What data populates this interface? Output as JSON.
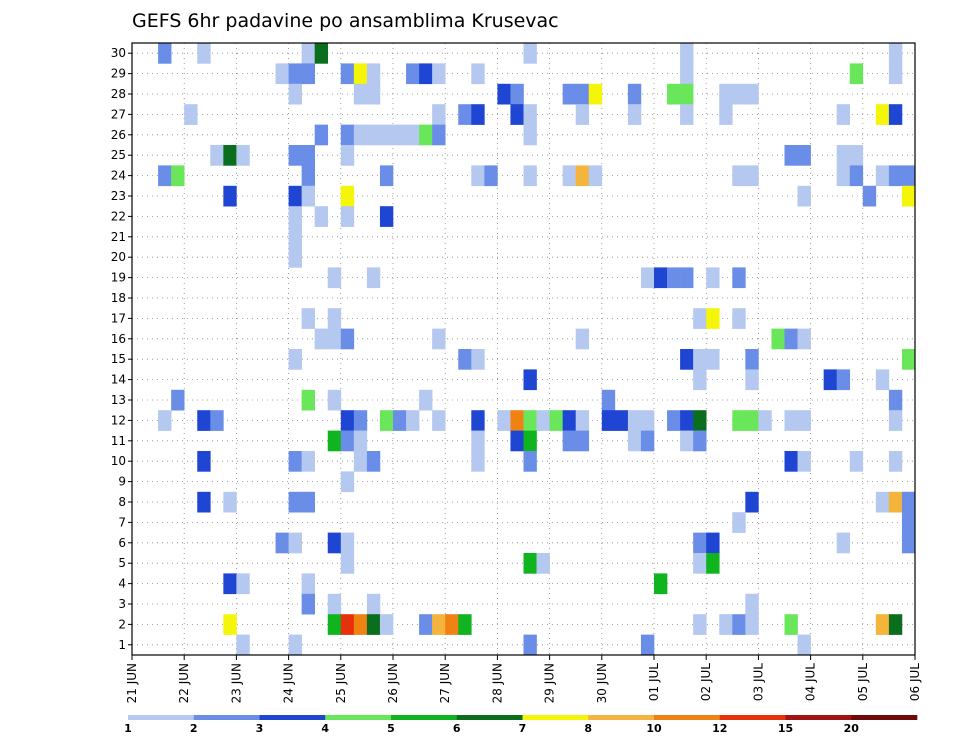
{
  "chart_data": {
    "type": "heatmap",
    "title": "GEFS 6hr padavine po ansamblima Krusevac",
    "x_ticks": [
      "21 JUN",
      "22 JUN",
      "23 JUN",
      "24 JUN",
      "25 JUN",
      "26 JUN",
      "27 JUN",
      "28 JUN",
      "29 JUN",
      "30 JUN",
      "01 JUL",
      "02 JUL",
      "03 JUL",
      "04 JUL",
      "05 JUL",
      "06 JUL"
    ],
    "y_ticks": [
      "1",
      "2",
      "3",
      "4",
      "5",
      "6",
      "7",
      "8",
      "9",
      "10",
      "11",
      "12",
      "13",
      "14",
      "15",
      "16",
      "17",
      "18",
      "19",
      "20",
      "21",
      "22",
      "23",
      "24",
      "25",
      "26",
      "27",
      "28",
      "29",
      "30"
    ],
    "time_steps_per_day": 4,
    "n_steps": 60,
    "grid": true,
    "colorbar": {
      "labels": [
        "1",
        "2",
        "3",
        "4",
        "5",
        "6",
        "7",
        "8",
        "10",
        "12",
        "15",
        "20"
      ],
      "colors": [
        "#b4c8f0",
        "#6a8ee8",
        "#1e46d2",
        "#6ae65a",
        "#10b41e",
        "#0a6e1e",
        "#f5f50a",
        "#f5b43c",
        "#f08214",
        "#e6320a",
        "#a01414",
        "#6e0a0a"
      ]
    },
    "cells": [
      {
        "m": 30,
        "t": 2,
        "c": 1
      },
      {
        "m": 30,
        "t": 5,
        "c": 0
      },
      {
        "m": 30,
        "t": 13,
        "c": 0
      },
      {
        "m": 30,
        "t": 14,
        "c": 5
      },
      {
        "m": 30,
        "t": 30,
        "c": 0
      },
      {
        "m": 30,
        "t": 42,
        "c": 0
      },
      {
        "m": 30,
        "t": 58,
        "c": 0
      },
      {
        "m": 29,
        "t": 11,
        "c": 0
      },
      {
        "m": 29,
        "t": 12,
        "c": 1
      },
      {
        "m": 29,
        "t": 13,
        "c": 1
      },
      {
        "m": 29,
        "t": 16,
        "c": 1
      },
      {
        "m": 29,
        "t": 17,
        "c": 6
      },
      {
        "m": 29,
        "t": 18,
        "c": 0
      },
      {
        "m": 29,
        "t": 21,
        "c": 1
      },
      {
        "m": 29,
        "t": 22,
        "c": 2
      },
      {
        "m": 29,
        "t": 23,
        "c": 0
      },
      {
        "m": 29,
        "t": 26,
        "c": 0
      },
      {
        "m": 29,
        "t": 42,
        "c": 0
      },
      {
        "m": 29,
        "t": 55,
        "c": 3
      },
      {
        "m": 29,
        "t": 58,
        "c": 0
      },
      {
        "m": 28,
        "t": 12,
        "c": 0
      },
      {
        "m": 28,
        "t": 17,
        "c": 0
      },
      {
        "m": 28,
        "t": 18,
        "c": 0
      },
      {
        "m": 28,
        "t": 28,
        "c": 2
      },
      {
        "m": 28,
        "t": 29,
        "c": 1
      },
      {
        "m": 28,
        "t": 33,
        "c": 1
      },
      {
        "m": 28,
        "t": 34,
        "c": 1
      },
      {
        "m": 28,
        "t": 35,
        "c": 6
      },
      {
        "m": 28,
        "t": 38,
        "c": 1
      },
      {
        "m": 28,
        "t": 41,
        "c": 3
      },
      {
        "m": 28,
        "t": 42,
        "c": 3
      },
      {
        "m": 28,
        "t": 45,
        "c": 0
      },
      {
        "m": 28,
        "t": 46,
        "c": 0
      },
      {
        "m": 28,
        "t": 47,
        "c": 0
      },
      {
        "m": 27,
        "t": 4,
        "c": 0
      },
      {
        "m": 27,
        "t": 23,
        "c": 0
      },
      {
        "m": 27,
        "t": 25,
        "c": 1
      },
      {
        "m": 27,
        "t": 26,
        "c": 2
      },
      {
        "m": 27,
        "t": 29,
        "c": 2
      },
      {
        "m": 27,
        "t": 30,
        "c": 0
      },
      {
        "m": 27,
        "t": 34,
        "c": 0
      },
      {
        "m": 27,
        "t": 38,
        "c": 0
      },
      {
        "m": 27,
        "t": 42,
        "c": 0
      },
      {
        "m": 27,
        "t": 45,
        "c": 0
      },
      {
        "m": 27,
        "t": 54,
        "c": 0
      },
      {
        "m": 27,
        "t": 57,
        "c": 6
      },
      {
        "m": 27,
        "t": 58,
        "c": 2
      },
      {
        "m": 26,
        "t": 14,
        "c": 1
      },
      {
        "m": 26,
        "t": 16,
        "c": 1
      },
      {
        "m": 26,
        "t": 17,
        "c": 0
      },
      {
        "m": 26,
        "t": 18,
        "c": 0
      },
      {
        "m": 26,
        "t": 19,
        "c": 0
      },
      {
        "m": 26,
        "t": 20,
        "c": 0
      },
      {
        "m": 26,
        "t": 21,
        "c": 0
      },
      {
        "m": 26,
        "t": 22,
        "c": 3
      },
      {
        "m": 26,
        "t": 23,
        "c": 1
      },
      {
        "m": 26,
        "t": 30,
        "c": 0
      },
      {
        "m": 25,
        "t": 6,
        "c": 0
      },
      {
        "m": 25,
        "t": 7,
        "c": 5
      },
      {
        "m": 25,
        "t": 8,
        "c": 0
      },
      {
        "m": 25,
        "t": 12,
        "c": 1
      },
      {
        "m": 25,
        "t": 13,
        "c": 1
      },
      {
        "m": 25,
        "t": 16,
        "c": 0
      },
      {
        "m": 25,
        "t": 50,
        "c": 1
      },
      {
        "m": 25,
        "t": 51,
        "c": 1
      },
      {
        "m": 25,
        "t": 54,
        "c": 0
      },
      {
        "m": 25,
        "t": 55,
        "c": 0
      },
      {
        "m": 24,
        "t": 2,
        "c": 1
      },
      {
        "m": 24,
        "t": 3,
        "c": 3
      },
      {
        "m": 24,
        "t": 13,
        "c": 1
      },
      {
        "m": 24,
        "t": 19,
        "c": 1
      },
      {
        "m": 24,
        "t": 26,
        "c": 0
      },
      {
        "m": 24,
        "t": 27,
        "c": 1
      },
      {
        "m": 24,
        "t": 30,
        "c": 0
      },
      {
        "m": 24,
        "t": 33,
        "c": 0
      },
      {
        "m": 24,
        "t": 34,
        "c": 7
      },
      {
        "m": 24,
        "t": 35,
        "c": 0
      },
      {
        "m": 24,
        "t": 46,
        "c": 0
      },
      {
        "m": 24,
        "t": 47,
        "c": 0
      },
      {
        "m": 24,
        "t": 54,
        "c": 0
      },
      {
        "m": 24,
        "t": 55,
        "c": 1
      },
      {
        "m": 24,
        "t": 57,
        "c": 0
      },
      {
        "m": 24,
        "t": 58,
        "c": 1
      },
      {
        "m": 24,
        "t": 59,
        "c": 1
      },
      {
        "m": 23,
        "t": 7,
        "c": 2
      },
      {
        "m": 23,
        "t": 12,
        "c": 2
      },
      {
        "m": 23,
        "t": 13,
        "c": 0
      },
      {
        "m": 23,
        "t": 16,
        "c": 6
      },
      {
        "m": 23,
        "t": 51,
        "c": 0
      },
      {
        "m": 23,
        "t": 56,
        "c": 1
      },
      {
        "m": 23,
        "t": 59,
        "c": 6
      },
      {
        "m": 22,
        "t": 12,
        "c": 0
      },
      {
        "m": 22,
        "t": 14,
        "c": 0
      },
      {
        "m": 22,
        "t": 16,
        "c": 0
      },
      {
        "m": 22,
        "t": 19,
        "c": 2
      },
      {
        "m": 21,
        "t": 12,
        "c": 0
      },
      {
        "m": 20,
        "t": 12,
        "c": 0
      },
      {
        "m": 19,
        "t": 15,
        "c": 0
      },
      {
        "m": 19,
        "t": 18,
        "c": 0
      },
      {
        "m": 19,
        "t": 39,
        "c": 0
      },
      {
        "m": 19,
        "t": 40,
        "c": 2
      },
      {
        "m": 19,
        "t": 41,
        "c": 1
      },
      {
        "m": 19,
        "t": 42,
        "c": 1
      },
      {
        "m": 19,
        "t": 44,
        "c": 0
      },
      {
        "m": 19,
        "t": 46,
        "c": 1
      },
      {
        "m": 17,
        "t": 13,
        "c": 0
      },
      {
        "m": 17,
        "t": 15,
        "c": 0
      },
      {
        "m": 17,
        "t": 43,
        "c": 0
      },
      {
        "m": 17,
        "t": 44,
        "c": 6
      },
      {
        "m": 17,
        "t": 46,
        "c": 0
      },
      {
        "m": 16,
        "t": 14,
        "c": 0
      },
      {
        "m": 16,
        "t": 15,
        "c": 0
      },
      {
        "m": 16,
        "t": 16,
        "c": 1
      },
      {
        "m": 16,
        "t": 23,
        "c": 0
      },
      {
        "m": 16,
        "t": 34,
        "c": 0
      },
      {
        "m": 16,
        "t": 49,
        "c": 3
      },
      {
        "m": 16,
        "t": 50,
        "c": 1
      },
      {
        "m": 16,
        "t": 51,
        "c": 0
      },
      {
        "m": 15,
        "t": 12,
        "c": 0
      },
      {
        "m": 15,
        "t": 25,
        "c": 1
      },
      {
        "m": 15,
        "t": 26,
        "c": 0
      },
      {
        "m": 15,
        "t": 42,
        "c": 2
      },
      {
        "m": 15,
        "t": 43,
        "c": 0
      },
      {
        "m": 15,
        "t": 44,
        "c": 0
      },
      {
        "m": 15,
        "t": 47,
        "c": 1
      },
      {
        "m": 15,
        "t": 59,
        "c": 3
      },
      {
        "m": 14,
        "t": 30,
        "c": 2
      },
      {
        "m": 14,
        "t": 43,
        "c": 0
      },
      {
        "m": 14,
        "t": 47,
        "c": 0
      },
      {
        "m": 14,
        "t": 53,
        "c": 2
      },
      {
        "m": 14,
        "t": 54,
        "c": 1
      },
      {
        "m": 14,
        "t": 57,
        "c": 0
      },
      {
        "m": 13,
        "t": 3,
        "c": 1
      },
      {
        "m": 13,
        "t": 13,
        "c": 3
      },
      {
        "m": 13,
        "t": 15,
        "c": 0
      },
      {
        "m": 13,
        "t": 22,
        "c": 0
      },
      {
        "m": 13,
        "t": 36,
        "c": 1
      },
      {
        "m": 13,
        "t": 58,
        "c": 1
      },
      {
        "m": 12,
        "t": 2,
        "c": 0
      },
      {
        "m": 12,
        "t": 5,
        "c": 2
      },
      {
        "m": 12,
        "t": 6,
        "c": 1
      },
      {
        "m": 12,
        "t": 16,
        "c": 2
      },
      {
        "m": 12,
        "t": 17,
        "c": 1
      },
      {
        "m": 12,
        "t": 19,
        "c": 3
      },
      {
        "m": 12,
        "t": 20,
        "c": 1
      },
      {
        "m": 12,
        "t": 21,
        "c": 0
      },
      {
        "m": 12,
        "t": 23,
        "c": 0
      },
      {
        "m": 12,
        "t": 26,
        "c": 2
      },
      {
        "m": 12,
        "t": 28,
        "c": 0
      },
      {
        "m": 12,
        "t": 29,
        "c": 8
      },
      {
        "m": 12,
        "t": 30,
        "c": 3
      },
      {
        "m": 12,
        "t": 31,
        "c": 0
      },
      {
        "m": 12,
        "t": 32,
        "c": 3
      },
      {
        "m": 12,
        "t": 33,
        "c": 2
      },
      {
        "m": 12,
        "t": 34,
        "c": 0
      },
      {
        "m": 12,
        "t": 36,
        "c": 2
      },
      {
        "m": 12,
        "t": 37,
        "c": 2
      },
      {
        "m": 12,
        "t": 38,
        "c": 0
      },
      {
        "m": 12,
        "t": 39,
        "c": 0
      },
      {
        "m": 12,
        "t": 41,
        "c": 1
      },
      {
        "m": 12,
        "t": 42,
        "c": 2
      },
      {
        "m": 12,
        "t": 43,
        "c": 5
      },
      {
        "m": 12,
        "t": 46,
        "c": 3
      },
      {
        "m": 12,
        "t": 47,
        "c": 3
      },
      {
        "m": 12,
        "t": 48,
        "c": 0
      },
      {
        "m": 12,
        "t": 50,
        "c": 0
      },
      {
        "m": 12,
        "t": 51,
        "c": 0
      },
      {
        "m": 12,
        "t": 58,
        "c": 0
      },
      {
        "m": 11,
        "t": 15,
        "c": 4
      },
      {
        "m": 11,
        "t": 16,
        "c": 1
      },
      {
        "m": 11,
        "t": 17,
        "c": 0
      },
      {
        "m": 11,
        "t": 26,
        "c": 0
      },
      {
        "m": 11,
        "t": 29,
        "c": 2
      },
      {
        "m": 11,
        "t": 30,
        "c": 4
      },
      {
        "m": 11,
        "t": 33,
        "c": 1
      },
      {
        "m": 11,
        "t": 34,
        "c": 1
      },
      {
        "m": 11,
        "t": 38,
        "c": 0
      },
      {
        "m": 11,
        "t": 39,
        "c": 1
      },
      {
        "m": 11,
        "t": 42,
        "c": 0
      },
      {
        "m": 11,
        "t": 43,
        "c": 1
      },
      {
        "m": 10,
        "t": 5,
        "c": 2
      },
      {
        "m": 10,
        "t": 12,
        "c": 1
      },
      {
        "m": 10,
        "t": 13,
        "c": 0
      },
      {
        "m": 10,
        "t": 17,
        "c": 0
      },
      {
        "m": 10,
        "t": 18,
        "c": 1
      },
      {
        "m": 10,
        "t": 26,
        "c": 0
      },
      {
        "m": 10,
        "t": 30,
        "c": 1
      },
      {
        "m": 10,
        "t": 50,
        "c": 2
      },
      {
        "m": 10,
        "t": 51,
        "c": 0
      },
      {
        "m": 10,
        "t": 55,
        "c": 0
      },
      {
        "m": 10,
        "t": 58,
        "c": 0
      },
      {
        "m": 9,
        "t": 16,
        "c": 0
      },
      {
        "m": 8,
        "t": 5,
        "c": 2
      },
      {
        "m": 8,
        "t": 7,
        "c": 0
      },
      {
        "m": 8,
        "t": 12,
        "c": 1
      },
      {
        "m": 8,
        "t": 13,
        "c": 1
      },
      {
        "m": 8,
        "t": 47,
        "c": 2
      },
      {
        "m": 8,
        "t": 57,
        "c": 0
      },
      {
        "m": 8,
        "t": 58,
        "c": 7
      },
      {
        "m": 8,
        "t": 59,
        "c": 1
      },
      {
        "m": 7,
        "t": 46,
        "c": 0
      },
      {
        "m": 7,
        "t": 59,
        "c": 1
      },
      {
        "m": 6,
        "t": 11,
        "c": 1
      },
      {
        "m": 6,
        "t": 12,
        "c": 0
      },
      {
        "m": 6,
        "t": 15,
        "c": 2
      },
      {
        "m": 6,
        "t": 16,
        "c": 0
      },
      {
        "m": 6,
        "t": 43,
        "c": 1
      },
      {
        "m": 6,
        "t": 44,
        "c": 2
      },
      {
        "m": 6,
        "t": 54,
        "c": 0
      },
      {
        "m": 6,
        "t": 59,
        "c": 1
      },
      {
        "m": 5,
        "t": 16,
        "c": 0
      },
      {
        "m": 5,
        "t": 30,
        "c": 4
      },
      {
        "m": 5,
        "t": 31,
        "c": 0
      },
      {
        "m": 5,
        "t": 43,
        "c": 0
      },
      {
        "m": 5,
        "t": 44,
        "c": 4
      },
      {
        "m": 4,
        "t": 7,
        "c": 2
      },
      {
        "m": 4,
        "t": 8,
        "c": 0
      },
      {
        "m": 4,
        "t": 13,
        "c": 0
      },
      {
        "m": 4,
        "t": 40,
        "c": 4
      },
      {
        "m": 3,
        "t": 13,
        "c": 1
      },
      {
        "m": 3,
        "t": 15,
        "c": 0
      },
      {
        "m": 3,
        "t": 18,
        "c": 0
      },
      {
        "m": 3,
        "t": 47,
        "c": 0
      },
      {
        "m": 2,
        "t": 7,
        "c": 6
      },
      {
        "m": 2,
        "t": 15,
        "c": 4
      },
      {
        "m": 2,
        "t": 16,
        "c": 9
      },
      {
        "m": 2,
        "t": 17,
        "c": 8
      },
      {
        "m": 2,
        "t": 18,
        "c": 5
      },
      {
        "m": 2,
        "t": 19,
        "c": 0
      },
      {
        "m": 2,
        "t": 22,
        "c": 1
      },
      {
        "m": 2,
        "t": 23,
        "c": 7
      },
      {
        "m": 2,
        "t": 24,
        "c": 8
      },
      {
        "m": 2,
        "t": 25,
        "c": 4
      },
      {
        "m": 2,
        "t": 43,
        "c": 0
      },
      {
        "m": 2,
        "t": 45,
        "c": 0
      },
      {
        "m": 2,
        "t": 46,
        "c": 1
      },
      {
        "m": 2,
        "t": 47,
        "c": 0
      },
      {
        "m": 2,
        "t": 50,
        "c": 3
      },
      {
        "m": 2,
        "t": 57,
        "c": 7
      },
      {
        "m": 2,
        "t": 58,
        "c": 5
      },
      {
        "m": 1,
        "t": 8,
        "c": 0
      },
      {
        "m": 1,
        "t": 12,
        "c": 0
      },
      {
        "m": 1,
        "t": 30,
        "c": 1
      },
      {
        "m": 1,
        "t": 39,
        "c": 1
      },
      {
        "m": 1,
        "t": 51,
        "c": 0
      }
    ]
  }
}
